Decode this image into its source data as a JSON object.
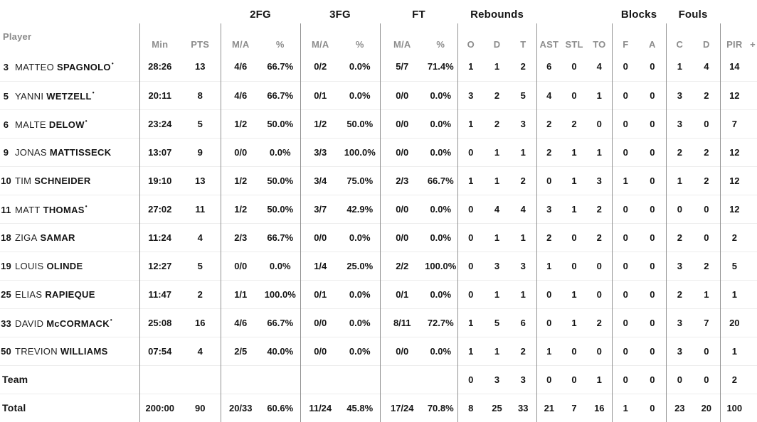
{
  "colors": {
    "header_gray": "#8d8d8d",
    "text": "#141414",
    "divider": "#919191",
    "row_separator": "#ededed"
  },
  "table": {
    "starter_marker": "•",
    "groups": {
      "fg2": "2FG",
      "fg3": "3FG",
      "ft": "FT",
      "rebounds": "Rebounds",
      "blocks": "Blocks",
      "fouls": "Fouls"
    },
    "columns": {
      "player": "Player",
      "min": "Min",
      "pts": "PTS",
      "ma": "M/A",
      "pct": "%",
      "reb_o": "O",
      "reb_d": "D",
      "reb_t": "T",
      "ast": "AST",
      "stl": "STL",
      "to": "TO",
      "blk_f": "F",
      "blk_a": "A",
      "foul_c": "C",
      "foul_d": "D",
      "pir": "PIR",
      "plus": "+"
    },
    "rows": [
      {
        "number": "3",
        "first": "MATTEO",
        "last": "SPAGNOLO",
        "starter": true,
        "min": "28:26",
        "pts": "13",
        "fg2_ma": "4/6",
        "fg2_pct": "66.7%",
        "fg3_ma": "0/2",
        "fg3_pct": "0.0%",
        "ft_ma": "5/7",
        "ft_pct": "71.4%",
        "reb_o": "1",
        "reb_d": "1",
        "reb_t": "2",
        "ast": "6",
        "stl": "0",
        "to": "4",
        "blk_f": "0",
        "blk_a": "0",
        "foul_c": "1",
        "foul_d": "4",
        "pir": "14"
      },
      {
        "number": "5",
        "first": "YANNI",
        "last": "WETZELL",
        "starter": true,
        "min": "20:11",
        "pts": "8",
        "fg2_ma": "4/6",
        "fg2_pct": "66.7%",
        "fg3_ma": "0/1",
        "fg3_pct": "0.0%",
        "ft_ma": "0/0",
        "ft_pct": "0.0%",
        "reb_o": "3",
        "reb_d": "2",
        "reb_t": "5",
        "ast": "4",
        "stl": "0",
        "to": "1",
        "blk_f": "0",
        "blk_a": "0",
        "foul_c": "3",
        "foul_d": "2",
        "pir": "12"
      },
      {
        "number": "6",
        "first": "MALTE",
        "last": "DELOW",
        "starter": true,
        "min": "23:24",
        "pts": "5",
        "fg2_ma": "1/2",
        "fg2_pct": "50.0%",
        "fg3_ma": "1/2",
        "fg3_pct": "50.0%",
        "ft_ma": "0/0",
        "ft_pct": "0.0%",
        "reb_o": "1",
        "reb_d": "2",
        "reb_t": "3",
        "ast": "2",
        "stl": "2",
        "to": "0",
        "blk_f": "0",
        "blk_a": "0",
        "foul_c": "3",
        "foul_d": "0",
        "pir": "7"
      },
      {
        "number": "9",
        "first": "JONAS",
        "last": "MATTISSECK",
        "starter": false,
        "min": "13:07",
        "pts": "9",
        "fg2_ma": "0/0",
        "fg2_pct": "0.0%",
        "fg3_ma": "3/3",
        "fg3_pct": "100.0%",
        "ft_ma": "0/0",
        "ft_pct": "0.0%",
        "reb_o": "0",
        "reb_d": "1",
        "reb_t": "1",
        "ast": "2",
        "stl": "1",
        "to": "1",
        "blk_f": "0",
        "blk_a": "0",
        "foul_c": "2",
        "foul_d": "2",
        "pir": "12"
      },
      {
        "number": "10",
        "first": "TIM",
        "last": "SCHNEIDER",
        "starter": false,
        "min": "19:10",
        "pts": "13",
        "fg2_ma": "1/2",
        "fg2_pct": "50.0%",
        "fg3_ma": "3/4",
        "fg3_pct": "75.0%",
        "ft_ma": "2/3",
        "ft_pct": "66.7%",
        "reb_o": "1",
        "reb_d": "1",
        "reb_t": "2",
        "ast": "0",
        "stl": "1",
        "to": "3",
        "blk_f": "1",
        "blk_a": "0",
        "foul_c": "1",
        "foul_d": "2",
        "pir": "12"
      },
      {
        "number": "11",
        "first": "MATT",
        "last": "THOMAS",
        "starter": true,
        "min": "27:02",
        "pts": "11",
        "fg2_ma": "1/2",
        "fg2_pct": "50.0%",
        "fg3_ma": "3/7",
        "fg3_pct": "42.9%",
        "ft_ma": "0/0",
        "ft_pct": "0.0%",
        "reb_o": "0",
        "reb_d": "4",
        "reb_t": "4",
        "ast": "3",
        "stl": "1",
        "to": "2",
        "blk_f": "0",
        "blk_a": "0",
        "foul_c": "0",
        "foul_d": "0",
        "pir": "12"
      },
      {
        "number": "18",
        "first": "ZIGA",
        "last": "SAMAR",
        "starter": false,
        "min": "11:24",
        "pts": "4",
        "fg2_ma": "2/3",
        "fg2_pct": "66.7%",
        "fg3_ma": "0/0",
        "fg3_pct": "0.0%",
        "ft_ma": "0/0",
        "ft_pct": "0.0%",
        "reb_o": "0",
        "reb_d": "1",
        "reb_t": "1",
        "ast": "2",
        "stl": "0",
        "to": "2",
        "blk_f": "0",
        "blk_a": "0",
        "foul_c": "2",
        "foul_d": "0",
        "pir": "2"
      },
      {
        "number": "19",
        "first": "LOUIS",
        "last": "OLINDE",
        "starter": false,
        "min": "12:27",
        "pts": "5",
        "fg2_ma": "0/0",
        "fg2_pct": "0.0%",
        "fg3_ma": "1/4",
        "fg3_pct": "25.0%",
        "ft_ma": "2/2",
        "ft_pct": "100.0%",
        "reb_o": "0",
        "reb_d": "3",
        "reb_t": "3",
        "ast": "1",
        "stl": "0",
        "to": "0",
        "blk_f": "0",
        "blk_a": "0",
        "foul_c": "3",
        "foul_d": "2",
        "pir": "5"
      },
      {
        "number": "25",
        "first": "ELIAS",
        "last": "RAPIEQUE",
        "starter": false,
        "min": "11:47",
        "pts": "2",
        "fg2_ma": "1/1",
        "fg2_pct": "100.0%",
        "fg3_ma": "0/1",
        "fg3_pct": "0.0%",
        "ft_ma": "0/1",
        "ft_pct": "0.0%",
        "reb_o": "0",
        "reb_d": "1",
        "reb_t": "1",
        "ast": "0",
        "stl": "1",
        "to": "0",
        "blk_f": "0",
        "blk_a": "0",
        "foul_c": "2",
        "foul_d": "1",
        "pir": "1"
      },
      {
        "number": "33",
        "first": "DAVID",
        "last": "McCORMACK",
        "starter": true,
        "min": "25:08",
        "pts": "16",
        "fg2_ma": "4/6",
        "fg2_pct": "66.7%",
        "fg3_ma": "0/0",
        "fg3_pct": "0.0%",
        "ft_ma": "8/11",
        "ft_pct": "72.7%",
        "reb_o": "1",
        "reb_d": "5",
        "reb_t": "6",
        "ast": "0",
        "stl": "1",
        "to": "2",
        "blk_f": "0",
        "blk_a": "0",
        "foul_c": "3",
        "foul_d": "7",
        "pir": "20"
      },
      {
        "number": "50",
        "first": "TREVION",
        "last": "WILLIAMS",
        "starter": false,
        "min": "07:54",
        "pts": "4",
        "fg2_ma": "2/5",
        "fg2_pct": "40.0%",
        "fg3_ma": "0/0",
        "fg3_pct": "0.0%",
        "ft_ma": "0/0",
        "ft_pct": "0.0%",
        "reb_o": "1",
        "reb_d": "1",
        "reb_t": "2",
        "ast": "1",
        "stl": "0",
        "to": "0",
        "blk_f": "0",
        "blk_a": "0",
        "foul_c": "3",
        "foul_d": "0",
        "pir": "1"
      },
      {
        "label": "Team",
        "reb_o": "0",
        "reb_d": "3",
        "reb_t": "3",
        "ast": "0",
        "stl": "0",
        "to": "1",
        "blk_f": "0",
        "blk_a": "0",
        "foul_c": "0",
        "foul_d": "0",
        "pir": "2"
      },
      {
        "label": "Total",
        "min": "200:00",
        "pts": "90",
        "fg2_ma": "20/33",
        "fg2_pct": "60.6%",
        "fg3_ma": "11/24",
        "fg3_pct": "45.8%",
        "ft_ma": "17/24",
        "ft_pct": "70.8%",
        "reb_o": "8",
        "reb_d": "25",
        "reb_t": "33",
        "ast": "21",
        "stl": "7",
        "to": "16",
        "blk_f": "1",
        "blk_a": "0",
        "foul_c": "23",
        "foul_d": "20",
        "pir": "100"
      }
    ]
  }
}
